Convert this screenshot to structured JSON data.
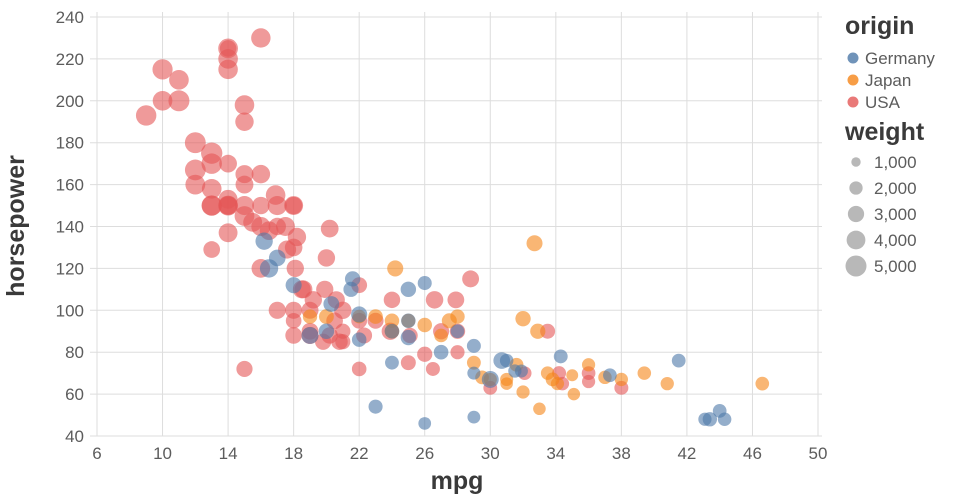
{
  "chart_data": {
    "type": "scatter",
    "title": "",
    "xlabel": "mpg",
    "ylabel": "horsepower",
    "xlim": [
      6,
      50
    ],
    "ylim": [
      40,
      240
    ],
    "x_ticks": [
      6,
      10,
      14,
      18,
      22,
      26,
      30,
      34,
      38,
      42,
      46,
      50
    ],
    "y_ticks": [
      40,
      60,
      80,
      100,
      120,
      140,
      160,
      180,
      200,
      220,
      240
    ],
    "grid": true,
    "point_opacity": 0.6,
    "point_fields": [
      "mpg",
      "horsepower",
      "weight"
    ],
    "legend": {
      "color_title": "origin",
      "size_title": "weight",
      "size_values": [
        1000,
        2000,
        3000,
        4000,
        5000
      ],
      "size_labels": [
        "1,000",
        "2,000",
        "3,000",
        "4,000",
        "5,000"
      ],
      "position": "right"
    },
    "series": [
      {
        "name": "Germany",
        "color": "#4c78a8",
        "points": [
          [
            26,
            46,
            1835
          ],
          [
            23,
            54,
            2254
          ],
          [
            25,
            87,
            2672
          ],
          [
            24,
            90,
            2430
          ],
          [
            25,
            95,
            2375
          ],
          [
            26,
            113,
            2234
          ],
          [
            28,
            90,
            2123
          ],
          [
            31,
            76,
            2065
          ],
          [
            18,
            112,
            2933
          ],
          [
            16.5,
            120,
            3820
          ],
          [
            17,
            125,
            3140
          ],
          [
            16.2,
            133,
            3410
          ],
          [
            20.3,
            103,
            2830
          ],
          [
            22,
            98,
            2945
          ],
          [
            21.6,
            115,
            2671
          ],
          [
            19,
            88,
            3270
          ],
          [
            29,
            70,
            1937
          ],
          [
            29,
            83,
            2219
          ],
          [
            30,
            67,
            3250
          ],
          [
            30.7,
            76,
            3160
          ],
          [
            31.5,
            71,
            1990
          ],
          [
            31.9,
            71,
            1925
          ],
          [
            34.3,
            78,
            2188
          ],
          [
            37.3,
            69,
            2130
          ],
          [
            41.5,
            76,
            2144
          ],
          [
            43.1,
            48,
            1985
          ],
          [
            44.3,
            48,
            2085
          ],
          [
            43.4,
            48,
            2335
          ],
          [
            44,
            52,
            2130
          ],
          [
            29,
            49,
            1867
          ],
          [
            24,
            75,
            2158
          ],
          [
            27,
            80,
            2420
          ],
          [
            21.5,
            110,
            2600
          ],
          [
            20,
            90,
            2711
          ],
          [
            22,
            86,
            2395
          ],
          [
            25,
            110,
            2694
          ]
        ]
      },
      {
        "name": "Japan",
        "color": "#f58518",
        "points": [
          [
            24,
            95,
            2372
          ],
          [
            27,
            88,
            2130
          ],
          [
            25,
            95,
            2228
          ],
          [
            31,
            65,
            1773
          ],
          [
            35,
            69,
            1613
          ],
          [
            31,
            67,
            1950
          ],
          [
            32,
            61,
            1975
          ],
          [
            24,
            90,
            2408
          ],
          [
            32.7,
            132,
            2910
          ],
          [
            20,
            97,
            2506
          ],
          [
            19,
            97,
            2330
          ],
          [
            22,
            97,
            2100
          ],
          [
            46.6,
            65,
            2110
          ],
          [
            40.8,
            65,
            2002
          ],
          [
            35.1,
            60,
            1760
          ],
          [
            39.4,
            70,
            2070
          ],
          [
            34.1,
            65,
            1975
          ],
          [
            29.5,
            68,
            2135
          ],
          [
            33,
            53,
            1795
          ],
          [
            37,
            68,
            2045
          ],
          [
            38,
            67,
            1995
          ],
          [
            24.2,
            120,
            2930
          ],
          [
            26,
            93,
            2391
          ],
          [
            30,
            67,
            1985
          ],
          [
            32,
            96,
            2665
          ],
          [
            33.8,
            67,
            2145
          ],
          [
            31.6,
            74,
            2190
          ],
          [
            28,
            97,
            2350
          ],
          [
            36,
            74,
            1980
          ],
          [
            33.5,
            70,
            2052
          ],
          [
            29,
            75,
            2171
          ],
          [
            23,
            97,
            2405
          ],
          [
            32.9,
            90,
            2615
          ],
          [
            27.5,
            95,
            2560
          ]
        ]
      },
      {
        "name": "USA",
        "color": "#e45756",
        "points": [
          [
            18,
            130,
            3504
          ],
          [
            15,
            165,
            3693
          ],
          [
            18,
            150,
            3436
          ],
          [
            16,
            150,
            3433
          ],
          [
            17,
            140,
            3449
          ],
          [
            15,
            198,
            4341
          ],
          [
            14,
            220,
            4354
          ],
          [
            14,
            215,
            4312
          ],
          [
            14,
            225,
            4425
          ],
          [
            15,
            190,
            3850
          ],
          [
            14,
            170,
            3563
          ],
          [
            15,
            160,
            3609
          ],
          [
            14,
            150,
            3761
          ],
          [
            14,
            225,
            3086
          ],
          [
            10,
            215,
            4615
          ],
          [
            10,
            200,
            4376
          ],
          [
            11,
            210,
            4382
          ],
          [
            9,
            193,
            4732
          ],
          [
            13,
            175,
            5140
          ],
          [
            12,
            180,
            4955
          ],
          [
            13,
            170,
            4746
          ],
          [
            13,
            150,
            4699
          ],
          [
            12,
            167,
            4900
          ],
          [
            16,
            230,
            4278
          ],
          [
            11,
            200,
            4997
          ],
          [
            21,
            90,
            2648
          ],
          [
            22,
            95,
            2833
          ],
          [
            18,
            95,
            2774
          ],
          [
            19,
            88,
            3302
          ],
          [
            17,
            100,
            3329
          ],
          [
            19,
            100,
            3282
          ],
          [
            18,
            100,
            3288
          ],
          [
            23,
            95,
            2904
          ],
          [
            25,
            75,
            2542
          ],
          [
            28,
            80,
            2264
          ],
          [
            19,
            90,
            3211
          ],
          [
            18,
            88,
            3139
          ],
          [
            22,
            72,
            2408
          ],
          [
            21,
            85,
            2587
          ],
          [
            14,
            150,
            4077
          ],
          [
            14,
            153,
            4034
          ],
          [
            14,
            150,
            4464
          ],
          [
            13,
            158,
            4382
          ],
          [
            12,
            160,
            4456
          ],
          [
            13,
            150,
            4457
          ],
          [
            15,
            150,
            4135
          ],
          [
            16,
            140,
            4141
          ],
          [
            17,
            150,
            4165
          ],
          [
            18,
            150,
            4077
          ],
          [
            15,
            145,
            4440
          ],
          [
            16,
            120,
            3962
          ],
          [
            15.5,
            142,
            4054
          ],
          [
            16.9,
            155,
            4360
          ],
          [
            17.5,
            140,
            4080
          ],
          [
            18.2,
            135,
            3830
          ],
          [
            16.5,
            138,
            3955
          ],
          [
            18.5,
            110,
            3645
          ],
          [
            18.6,
            110,
            3620
          ],
          [
            18.1,
            120,
            3410
          ],
          [
            19.2,
            105,
            3425
          ],
          [
            17.6,
            129,
            3725
          ],
          [
            19.9,
            110,
            3365
          ],
          [
            20.2,
            139,
            3570
          ],
          [
            20.2,
            88,
            3060
          ],
          [
            20.5,
            95,
            3155
          ],
          [
            19.8,
            85,
            2990
          ],
          [
            22.3,
            88,
            2890
          ],
          [
            20.6,
            105,
            3380
          ],
          [
            20.8,
            85,
            3070
          ],
          [
            25.1,
            88,
            2720
          ],
          [
            23.9,
            90,
            3420
          ],
          [
            26.6,
            105,
            3465
          ],
          [
            28.8,
            115,
            3230
          ],
          [
            27.9,
            105,
            3190
          ],
          [
            28,
            90,
            2678
          ],
          [
            24,
            105,
            3080
          ],
          [
            22,
            112,
            2835
          ],
          [
            21,
            100,
            3432
          ],
          [
            20,
            125,
            3425
          ],
          [
            30,
            63,
            2155
          ],
          [
            32.1,
            70,
            2120
          ],
          [
            34.2,
            70,
            2200
          ],
          [
            36,
            70,
            2125
          ],
          [
            34.4,
            65,
            2045
          ],
          [
            38,
            63,
            2215
          ],
          [
            33.5,
            90,
            2556
          ],
          [
            27,
            90,
            2950
          ],
          [
            26,
            79,
            2625
          ],
          [
            26.5,
            72,
            2223
          ],
          [
            36,
            66,
            1980
          ],
          [
            15,
            72,
            2965
          ],
          [
            13,
            129,
            3169
          ],
          [
            14,
            137,
            4042
          ],
          [
            16,
            165,
            3880
          ]
        ]
      }
    ]
  },
  "colors": {
    "grid": "#dddddd",
    "tick_label": "#5c5c5c",
    "axis_title": "#3a3a3a",
    "legend_label": "#5c5c5c",
    "size_symbol": "#9a9a9a",
    "background": "#ffffff"
  }
}
